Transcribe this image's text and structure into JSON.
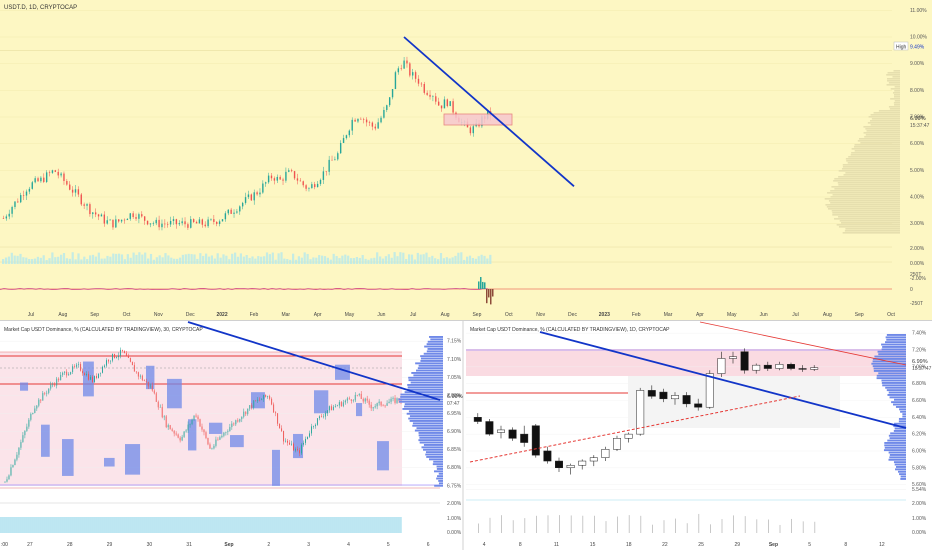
{
  "colors": {
    "top_bg": "#fdf7c3",
    "bottom_bg": "#ffffff",
    "up": "#26a69a",
    "down": "#ef5350",
    "trend_blue": "#1235c8",
    "zone_pink": "#f7c7cf",
    "profile_blue": "#6f89e8",
    "red_line": "#e53935",
    "volume": "#b5e8ec"
  },
  "chart_data": [
    {
      "type": "candlestick",
      "title": "USDT.D, 1D, CRYPTOCAP",
      "ylim": [
        2.5,
        11.2
      ],
      "y_ticks": [
        "11.00%",
        "10.00%",
        "9.00%",
        "8.00%",
        "7.00%",
        "6.00%",
        "5.00%",
        "4.00%",
        "3.00%"
      ],
      "x_ticks": [
        "Jul",
        "Aug",
        "Sep",
        "Oct",
        "Nov",
        "Dec",
        "2022",
        "Feb",
        "Mar",
        "Apr",
        "May",
        "Jun",
        "Jul",
        "Aug",
        "Sep",
        "Oct",
        "Nov",
        "Dec",
        "2023",
        "Feb",
        "Mar",
        "Apr",
        "May",
        "Jun",
        "Jul",
        "Aug",
        "Sep",
        "Oct"
      ],
      "x_tick_bold": [
        "2022",
        "2023"
      ],
      "price_labels": {
        "high_label": "High",
        "high_value": "9.49%",
        "last_value": "6.99%",
        "countdown": "15:37:47"
      },
      "series_close": [
        3.2,
        3.6,
        3.9,
        4.3,
        4.5,
        4.6,
        4.8,
        5.0,
        4.7,
        4.4,
        4.1,
        3.8,
        3.5,
        3.3,
        3.1,
        3.0,
        3.1,
        3.3,
        3.4,
        3.2,
        3.1,
        3.0,
        3.0,
        3.0,
        3.0,
        3.0,
        3.0,
        3.0,
        3.0,
        3.1,
        3.2,
        3.4,
        3.6,
        3.8,
        4.0,
        4.2,
        4.5,
        4.8,
        4.6,
        4.9,
        4.8,
        4.5,
        4.3,
        4.6,
        4.9,
        5.3,
        5.6,
        6.3,
        6.9,
        7.1,
        6.8,
        6.6,
        7.0,
        7.5,
        8.7,
        9.1,
        8.6,
        8.4,
        8.0,
        7.9,
        7.4,
        7.6,
        7.2,
        6.8,
        6.5,
        6.6,
        7.0,
        7.1
      ],
      "trendline": {
        "from": {
          "x": "Jun 2022",
          "y": 10.0
        },
        "to": {
          "x": "Nov 2022",
          "y": 4.4
        }
      },
      "indicators": {
        "mid_ticks": [
          "2.00%",
          "0.00%",
          "-2.00%"
        ],
        "osc_ticks": [
          "250T",
          "0",
          "-250T"
        ]
      }
    },
    {
      "type": "candlestick",
      "title": "Market Cap USDT Dominance, % (CALCULATED BY TRADINGVIEW), 30, CRYPTOCAP",
      "ylim": [
        6.73,
        7.17
      ],
      "y_ticks": [
        "7.15%",
        "7.10%",
        "7.05%",
        "7.00%",
        "6.95%",
        "6.90%",
        "6.85%",
        "6.80%",
        "6.75%"
      ],
      "x_ticks": [
        "27",
        "28",
        "29",
        "30",
        "31",
        "Sep",
        "2",
        "3",
        "4",
        "5",
        "6"
      ],
      "x_tick_bold": [
        "Sep"
      ],
      "price_labels": {
        "last_value": "6.99%",
        "countdown": "07:47"
      },
      "left_axis_label": ":00",
      "series_close": [
        6.76,
        6.86,
        6.97,
        7.02,
        7.06,
        7.08,
        7.04,
        7.1,
        7.12,
        7.06,
        7.02,
        6.92,
        6.88,
        6.95,
        6.85,
        6.9,
        6.94,
        6.98,
        7.0,
        6.88,
        6.84,
        6.92,
        6.96,
        6.98,
        7.0,
        6.97,
        6.98,
        6.99
      ],
      "indicators": {
        "osc_ticks": [
          "2.00%",
          "1.00%",
          "0.00%"
        ]
      }
    },
    {
      "type": "candlestick",
      "title": "Market Cap USDT Dominance, % (CALCULATED BY TRADINGVIEW), 1D, CRYPTOCAP",
      "ylim": [
        5.5,
        7.45
      ],
      "y_ticks": [
        "7.40%",
        "7.20%",
        "7.00%",
        "6.80%",
        "6.60%",
        "6.40%",
        "6.20%",
        "6.00%",
        "5.80%",
        "5.60%",
        "5.54%"
      ],
      "x_ticks": [
        "4",
        "8",
        "11",
        "15",
        "18",
        "22",
        "25",
        "29",
        "Sep",
        "5",
        "8",
        "12"
      ],
      "x_tick_bold": [
        "Sep"
      ],
      "price_labels": {
        "last_value": "6.99%",
        "countdown": "15:37:47"
      },
      "series_ohlc": [
        [
          6.4,
          6.45,
          6.32,
          6.35
        ],
        [
          6.35,
          6.38,
          6.18,
          6.2
        ],
        [
          6.22,
          6.3,
          6.15,
          6.25
        ],
        [
          6.25,
          6.28,
          6.12,
          6.15
        ],
        [
          6.2,
          6.3,
          6.05,
          6.1
        ],
        [
          6.3,
          6.32,
          5.92,
          5.95
        ],
        [
          6.0,
          6.05,
          5.85,
          5.88
        ],
        [
          5.88,
          5.92,
          5.75,
          5.8
        ],
        [
          5.8,
          5.85,
          5.72,
          5.83
        ],
        [
          5.83,
          5.9,
          5.78,
          5.88
        ],
        [
          5.88,
          5.95,
          5.82,
          5.92
        ],
        [
          5.92,
          6.05,
          5.88,
          6.02
        ],
        [
          6.02,
          6.18,
          6.0,
          6.15
        ],
        [
          6.15,
          6.22,
          6.1,
          6.2
        ],
        [
          6.2,
          6.75,
          6.18,
          6.72
        ],
        [
          6.72,
          6.78,
          6.62,
          6.65
        ],
        [
          6.7,
          6.74,
          6.58,
          6.62
        ],
        [
          6.62,
          6.7,
          6.55,
          6.66
        ],
        [
          6.66,
          6.7,
          6.52,
          6.56
        ],
        [
          6.56,
          6.62,
          6.48,
          6.52
        ],
        [
          6.52,
          6.96,
          6.5,
          6.92
        ],
        [
          6.92,
          7.18,
          6.88,
          7.1
        ],
        [
          7.1,
          7.18,
          7.04,
          7.12
        ],
        [
          7.18,
          7.22,
          6.92,
          6.96
        ],
        [
          6.96,
          7.04,
          6.92,
          7.02
        ],
        [
          7.02,
          7.06,
          6.95,
          6.98
        ],
        [
          6.98,
          7.06,
          6.96,
          7.03
        ],
        [
          7.03,
          7.05,
          6.96,
          6.98
        ],
        [
          6.98,
          7.02,
          6.94,
          6.97
        ],
        [
          6.97,
          7.02,
          6.95,
          6.99
        ]
      ],
      "indicators": {
        "osc_ticks": [
          "2.00%",
          "1.00%",
          "0.00%"
        ]
      }
    }
  ]
}
